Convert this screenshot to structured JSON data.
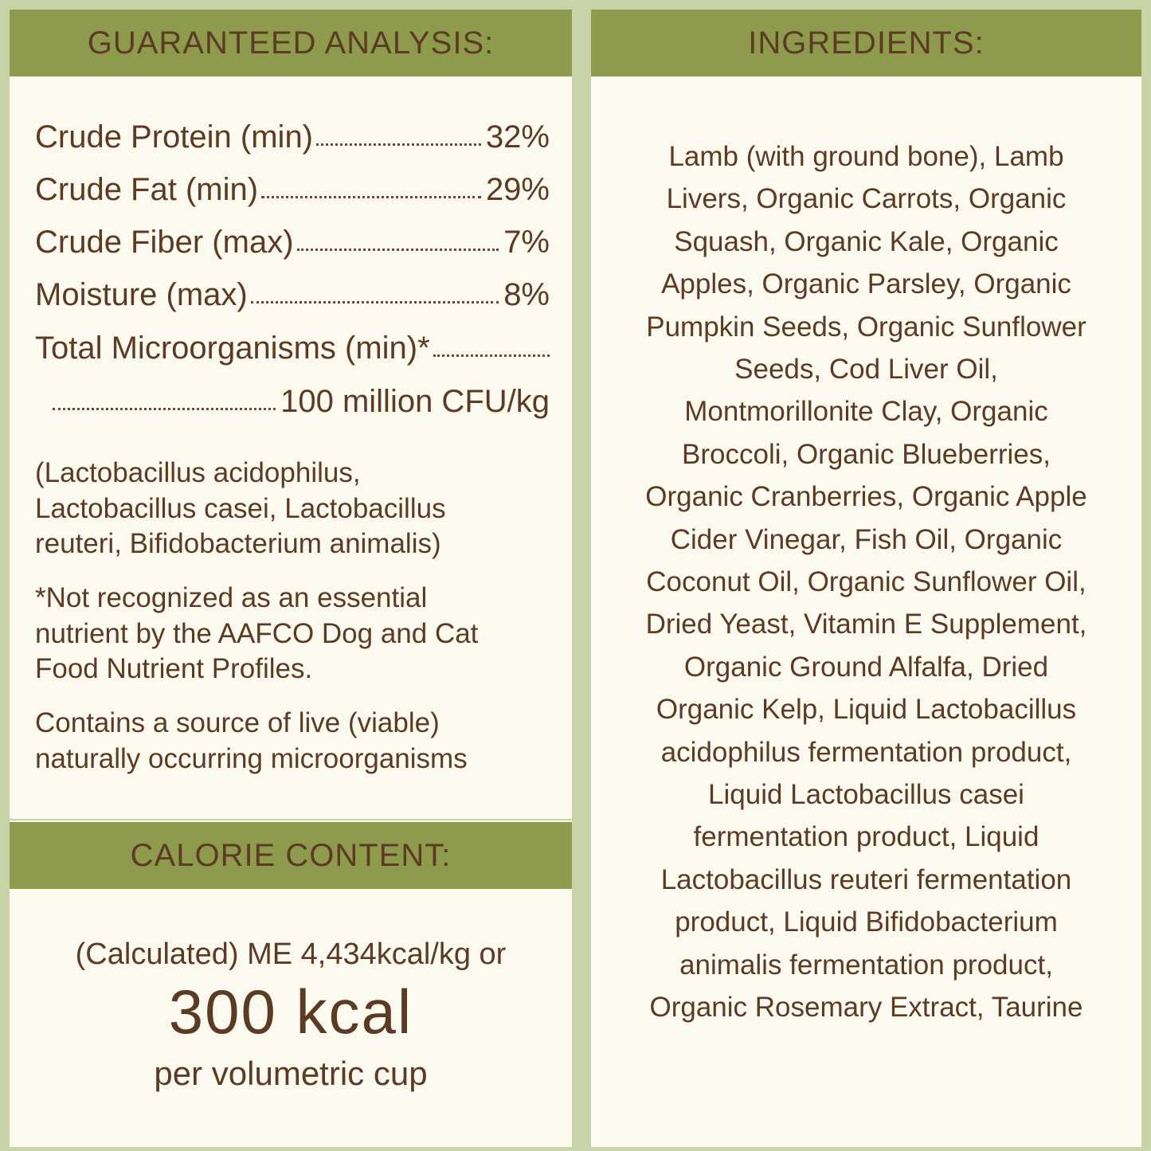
{
  "analysis": {
    "title": "GUARANTEED ANALYSIS:",
    "rows": [
      {
        "label": "Crude Protein (min)",
        "value": "32%"
      },
      {
        "label": "Crude Fat (min)",
        "value": "29%"
      },
      {
        "label": "Crude Fiber (max)",
        "value": "7%"
      },
      {
        "label": "Moisture (max)",
        "value": "8%"
      },
      {
        "label": "Total Microorganisms (min)*",
        "value": "100 million CFU/kg"
      }
    ],
    "notes": [
      [
        "(Lactobacillus acidophilus,",
        "Lactobacillus casei, Lactobacillus",
        "reuteri, Bifidobacterium animalis)"
      ],
      [
        "*Not recognized as an essential",
        "nutrient by the AAFCO Dog and Cat",
        "Food Nutrient Profiles."
      ],
      [
        "Contains a source of live (viable)",
        "naturally occurring microorganisms"
      ]
    ]
  },
  "calorie": {
    "title": "CALORIE CONTENT:",
    "line1": "(Calculated) ME 4,434kcal/kg or",
    "highlight": "300 kcal",
    "line3": "per volumetric cup"
  },
  "ingredients": {
    "title": "INGREDIENTS:",
    "lines": [
      "Lamb (with ground bone), Lamb",
      "Livers, Organic Carrots, Organic",
      "Squash, Organic Kale, Organic",
      "Apples, Organic Parsley, Organic",
      "Pumpkin Seeds, Organic Sunflower",
      "Seeds, Cod Liver Oil,",
      "Montmorillonite Clay, Organic",
      "Broccoli, Organic Blueberries,",
      "Organic Cranberries, Organic Apple",
      "Cider Vinegar, Fish Oil, Organic",
      "Coconut Oil, Organic Sunflower Oil,",
      "Dried Yeast, Vitamin E Supplement,",
      "Organic Ground Alfalfa, Dried",
      "Organic Kelp, Liquid Lactobacillus",
      "acidophilus fermentation product,",
      "Liquid Lactobacillus casei",
      "fermentation product, Liquid",
      "Lactobacillus reuteri fermentation",
      "product, Liquid Bifidobacterium",
      "animalis fermentation product,",
      "Organic Rosemary Extract, Taurine"
    ]
  }
}
